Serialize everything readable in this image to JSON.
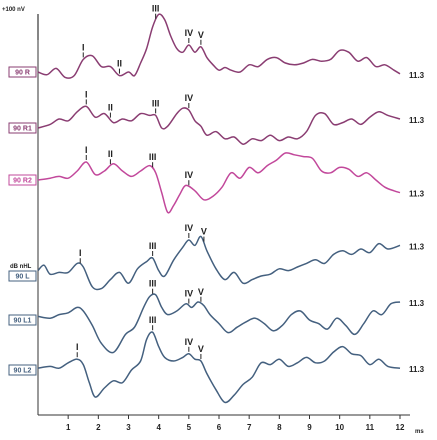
{
  "chart_data": {
    "type": "line",
    "title": "",
    "xlabel": "ms",
    "ylabel": "dB nHL",
    "scale_label": "+100 nV",
    "xlim": [
      0,
      12
    ],
    "x_ticks": [
      1,
      2,
      3,
      4,
      5,
      6,
      7,
      8,
      9,
      10,
      11,
      12
    ],
    "grid": false,
    "colors": {
      "right": "#8a3d72",
      "right_light": "#c2489b",
      "left": "#44607f",
      "axis": "#333333"
    },
    "series": [
      {
        "name": "90 R",
        "color": "right",
        "baseline": 72,
        "end_value": "11.3",
        "x": [
          0.0,
          0.3,
          0.6,
          0.9,
          1.2,
          1.5,
          1.8,
          2.1,
          2.4,
          2.7,
          3.0,
          3.2,
          3.4,
          3.6,
          3.8,
          4.0,
          4.2,
          4.4,
          4.6,
          4.8,
          5.0,
          5.2,
          5.4,
          5.6,
          5.8,
          6.0,
          6.2,
          6.4,
          6.7,
          7.0,
          7.3,
          7.6,
          7.9,
          8.2,
          8.5,
          8.8,
          9.1,
          9.4,
          9.7,
          10.0,
          10.3,
          10.6,
          10.9,
          11.2,
          11.5,
          11.8,
          12.0
        ],
        "y": [
          0,
          3,
          -4,
          6,
          4,
          -14,
          -18,
          -6,
          -6,
          4,
          0,
          4,
          -10,
          -26,
          -50,
          -64,
          -58,
          -40,
          -26,
          -22,
          -30,
          -22,
          -28,
          -16,
          -8,
          -2,
          -5,
          -2,
          0,
          -8,
          -6,
          -14,
          -16,
          -10,
          -8,
          -10,
          -14,
          -12,
          -14,
          -24,
          -22,
          -12,
          -16,
          -6,
          -8,
          -2,
          2
        ],
        "peaks": [
          {
            "label": "I",
            "x": 1.5
          },
          {
            "label": "II",
            "x": 2.7
          },
          {
            "label": "III",
            "x": 3.9
          },
          {
            "label": "IV",
            "x": 5.0
          },
          {
            "label": "V",
            "x": 5.4
          }
        ]
      },
      {
        "name": "90 R1",
        "color": "right",
        "baseline": 128,
        "end_value": "11.3",
        "x": [
          0.0,
          0.4,
          0.7,
          1.0,
          1.3,
          1.6,
          1.9,
          2.2,
          2.5,
          2.8,
          3.1,
          3.4,
          3.7,
          3.9,
          4.1,
          4.3,
          4.6,
          4.8,
          5.0,
          5.2,
          5.4,
          5.6,
          5.9,
          6.2,
          6.5,
          6.8,
          7.1,
          7.4,
          7.7,
          8.0,
          8.3,
          8.6,
          8.9,
          9.2,
          9.5,
          9.8,
          10.1,
          10.4,
          10.7,
          11.0,
          11.3,
          11.6,
          12.0
        ],
        "y": [
          0,
          -4,
          -10,
          -8,
          -18,
          -24,
          -12,
          -16,
          -6,
          -10,
          -8,
          -16,
          -14,
          -14,
          0,
          -2,
          -16,
          -22,
          -20,
          -8,
          -2,
          8,
          4,
          12,
          10,
          18,
          12,
          14,
          8,
          14,
          10,
          12,
          4,
          -14,
          -16,
          -4,
          -6,
          -10,
          -4,
          -12,
          -18,
          -14,
          -10
        ],
        "peaks": [
          {
            "label": "I",
            "x": 1.6
          },
          {
            "label": "II",
            "x": 2.4
          },
          {
            "label": "III",
            "x": 3.9
          },
          {
            "label": "IV",
            "x": 5.0
          }
        ]
      },
      {
        "name": "90 R2",
        "color": "right_light",
        "baseline": 180,
        "end_value": "11.3",
        "x": [
          0.0,
          0.4,
          0.7,
          1.0,
          1.3,
          1.6,
          1.9,
          2.2,
          2.5,
          2.8,
          3.1,
          3.4,
          3.7,
          3.9,
          4.1,
          4.3,
          4.5,
          4.7,
          4.9,
          5.2,
          5.5,
          5.8,
          6.1,
          6.4,
          6.7,
          7.0,
          7.3,
          7.6,
          7.9,
          8.2,
          8.5,
          8.8,
          9.1,
          9.4,
          9.7,
          10.0,
          10.3,
          10.6,
          10.9,
          11.2,
          11.5,
          11.8,
          12.0
        ],
        "y": [
          0,
          -2,
          -4,
          -2,
          -10,
          -20,
          -6,
          -10,
          -18,
          -10,
          -4,
          -10,
          -16,
          -8,
          14,
          36,
          28,
          16,
          6,
          12,
          22,
          18,
          8,
          -8,
          -2,
          -14,
          -8,
          -16,
          -22,
          -30,
          -28,
          -26,
          -24,
          -10,
          -8,
          -14,
          -12,
          -4,
          -8,
          0,
          8,
          12,
          14
        ],
        "peaks": [
          {
            "label": "I",
            "x": 1.6
          },
          {
            "label": "II",
            "x": 2.4
          },
          {
            "label": "III",
            "x": 3.8
          },
          {
            "label": "IV",
            "x": 5.0
          }
        ]
      },
      {
        "name": "90 L",
        "color": "left",
        "baseline": 276,
        "end_value": "11.3",
        "x": [
          0.0,
          0.2,
          0.4,
          0.7,
          1.0,
          1.3,
          1.5,
          1.8,
          2.1,
          2.4,
          2.7,
          3.0,
          3.3,
          3.6,
          3.8,
          4.0,
          4.2,
          4.5,
          4.8,
          5.0,
          5.2,
          5.4,
          5.6,
          5.9,
          6.2,
          6.5,
          6.8,
          7.1,
          7.4,
          7.7,
          8.0,
          8.3,
          8.6,
          8.9,
          9.2,
          9.5,
          9.8,
          10.1,
          10.4,
          10.7,
          11.0,
          11.3,
          11.6,
          12.0
        ],
        "y": [
          -6,
          -12,
          -2,
          -4,
          -4,
          -14,
          -10,
          12,
          14,
          4,
          -4,
          8,
          -8,
          -16,
          -20,
          -6,
          0,
          -18,
          -32,
          -40,
          -34,
          -44,
          -28,
          -8,
          4,
          -4,
          8,
          4,
          0,
          -2,
          -8,
          -6,
          -10,
          -14,
          -18,
          -14,
          -24,
          -28,
          -24,
          -30,
          -26,
          -36,
          -30,
          -34
        ],
        "peaks": [
          {
            "label": "I",
            "x": 1.4
          },
          {
            "label": "III",
            "x": 3.8
          },
          {
            "label": "IV",
            "x": 5.0
          },
          {
            "label": "V",
            "x": 5.5
          }
        ]
      },
      {
        "name": "90 L1",
        "color": "left",
        "baseline": 320,
        "end_value": "11.3",
        "x": [
          0.0,
          0.4,
          0.7,
          1.0,
          1.3,
          1.5,
          1.8,
          2.1,
          2.5,
          2.9,
          3.2,
          3.5,
          3.7,
          3.9,
          4.1,
          4.3,
          4.6,
          4.9,
          5.1,
          5.3,
          5.5,
          5.7,
          6.0,
          6.3,
          6.6,
          6.9,
          7.2,
          7.5,
          7.8,
          8.1,
          8.4,
          8.7,
          9.0,
          9.3,
          9.6,
          9.9,
          10.2,
          10.5,
          10.8,
          11.1,
          11.4,
          11.7,
          12.0
        ],
        "y": [
          -4,
          -2,
          -6,
          -8,
          -14,
          -10,
          6,
          26,
          36,
          16,
          8,
          -14,
          -26,
          -28,
          -14,
          -6,
          -10,
          -18,
          -14,
          -20,
          -16,
          -6,
          4,
          14,
          8,
          2,
          -2,
          4,
          12,
          6,
          -6,
          -10,
          0,
          4,
          10,
          -2,
          6,
          16,
          4,
          -10,
          -6,
          -18,
          -20
        ],
        "peaks": [
          {
            "label": "III",
            "x": 3.8
          },
          {
            "label": "IV",
            "x": 5.0
          },
          {
            "label": "V",
            "x": 5.4
          }
        ]
      },
      {
        "name": "90 L2",
        "color": "left",
        "baseline": 370,
        "end_value": "11.3",
        "x": [
          0.0,
          0.4,
          0.7,
          1.0,
          1.3,
          1.5,
          1.7,
          1.9,
          2.2,
          2.5,
          2.8,
          3.1,
          3.4,
          3.6,
          3.8,
          4.0,
          4.2,
          4.5,
          4.8,
          5.0,
          5.2,
          5.4,
          5.6,
          5.9,
          6.2,
          6.5,
          6.8,
          7.1,
          7.4,
          7.7,
          8.0,
          8.3,
          8.6,
          8.9,
          9.2,
          9.5,
          9.8,
          10.1,
          10.4,
          10.7,
          11.0,
          11.3,
          11.6,
          12.0
        ],
        "y": [
          -2,
          -4,
          -2,
          -8,
          -12,
          -6,
          14,
          30,
          20,
          12,
          14,
          0,
          -10,
          -34,
          -42,
          -26,
          -14,
          -10,
          -14,
          -18,
          -12,
          -10,
          4,
          22,
          36,
          28,
          16,
          8,
          -8,
          -6,
          -12,
          -4,
          -8,
          -14,
          -8,
          -10,
          -20,
          -26,
          -18,
          -16,
          -6,
          -12,
          -4,
          -2
        ],
        "peaks": [
          {
            "label": "I",
            "x": 1.3
          },
          {
            "label": "III",
            "x": 3.8
          },
          {
            "label": "IV",
            "x": 5.0
          },
          {
            "label": "V",
            "x": 5.4
          }
        ]
      }
    ]
  }
}
